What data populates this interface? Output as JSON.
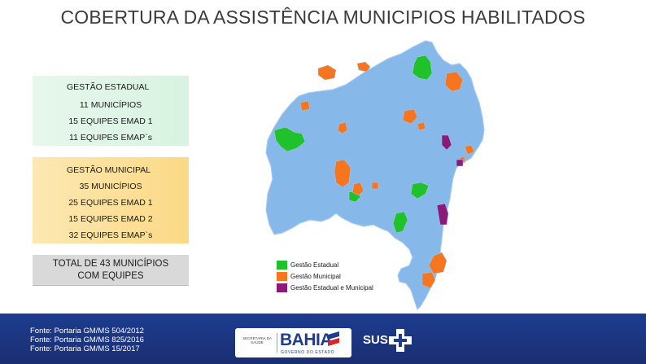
{
  "title": "COBERTURA DA ASSISTÊNCIA MUNICIPIOS HABILITADOS",
  "estadual": {
    "heading": "GESTÃO ESTADUAL",
    "municipios": "11 MUNICÍPIOS",
    "emad": "15 EQUIPES EMAD 1",
    "emap": "11 EQUIPES EMAP`s"
  },
  "municipal": {
    "heading": "GESTÃO MUNICIPAL",
    "municipios": "35 MUNICÍPIOS",
    "emad1": "25 EQUIPES EMAD 1",
    "emad2": "15 EQUIPES EMAD 2",
    "emap": "32 EQUIPES EMAP`s"
  },
  "total": {
    "line1": "TOTAL DE 43 MUNICÍPIOS",
    "line2": "COM EQUIPES"
  },
  "legend": [
    {
      "label": "Gestão Estadual",
      "color": "#1fc22a"
    },
    {
      "label": "Gestão Municipal",
      "color": "#f6761f"
    },
    {
      "label": "Gestão Estadual e Municipal",
      "color": "#8b1a7a"
    }
  ],
  "map_colors": {
    "base": "#86b8ea",
    "border": "#a9cdf1",
    "estadual": "#1fc22a",
    "municipal": "#f6761f",
    "ambos": "#8b1a7a"
  },
  "sources": [
    "Fonte: Portaria GM/MS 504/2012",
    "Fonte: Portaria GM/MS 825/2016",
    "Fonte: Portaria GM/MS 15/2017"
  ],
  "logos": {
    "secretaria": "SECRETARIA DA SAÚDE",
    "bahia": "BAHIA",
    "governo": "GOVERNO DO ESTADO",
    "sus": "SUS"
  }
}
